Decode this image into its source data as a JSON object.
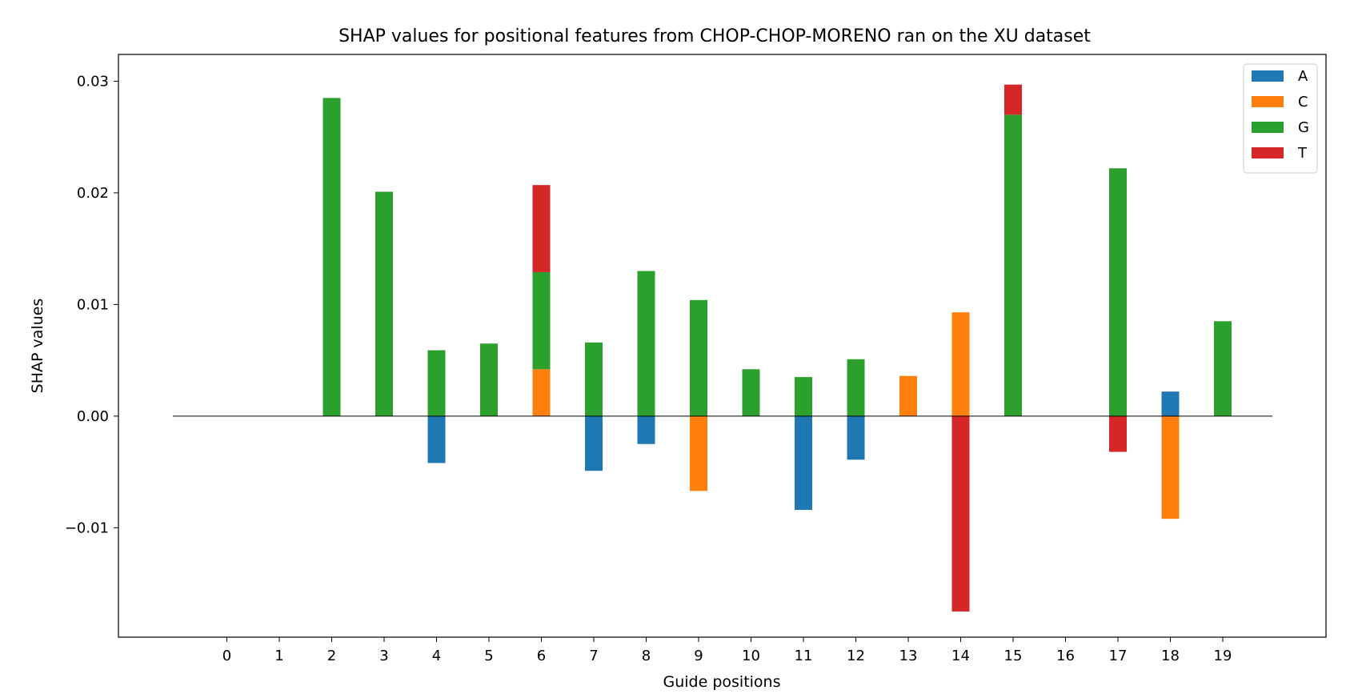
{
  "chart_data": {
    "type": "bar",
    "stacked": true,
    "title": "SHAP values for positional features from CHOP-CHOP-MORENO ran on the XU dataset",
    "xlabel": "Guide positions",
    "ylabel": "SHAP values",
    "categories": [
      "0",
      "1",
      "2",
      "3",
      "4",
      "5",
      "6",
      "7",
      "8",
      "9",
      "10",
      "11",
      "12",
      "13",
      "14",
      "15",
      "16",
      "17",
      "18",
      "19"
    ],
    "ylim": [
      -0.0198,
      0.0324
    ],
    "yticks": [
      -0.01,
      0.0,
      0.01,
      0.02,
      0.03
    ],
    "ytick_labels": [
      "−0.01",
      "0.00",
      "0.01",
      "0.02",
      "0.03"
    ],
    "grid": false,
    "legend_position": "top-right",
    "series": [
      {
        "name": "A",
        "color": "#1f77b4",
        "values": [
          0,
          0,
          0,
          0,
          -0.0042,
          0,
          0,
          -0.0049,
          -0.0025,
          0,
          0,
          -0.0084,
          -0.0039,
          0,
          0,
          0,
          0,
          0,
          0.0022,
          0
        ]
      },
      {
        "name": "C",
        "color": "#ff7f0e",
        "values": [
          0,
          0,
          0,
          0,
          0,
          0,
          0.0042,
          0,
          0,
          -0.0067,
          0,
          0,
          0,
          0.0036,
          0.0093,
          0,
          0,
          0,
          -0.0092,
          0
        ]
      },
      {
        "name": "G",
        "color": "#2ca02c",
        "values": [
          0,
          0,
          0.0285,
          0.0201,
          0.0059,
          0.0065,
          0.0087,
          0.0066,
          0.013,
          0.0104,
          0.0042,
          0.0035,
          0.0051,
          0,
          0,
          0.027,
          0,
          0.0222,
          0,
          0.0085
        ]
      },
      {
        "name": "T",
        "color": "#d62728",
        "values": [
          0,
          0,
          0,
          0,
          0,
          0,
          0.0078,
          0,
          0,
          0,
          0,
          0,
          0,
          0,
          -0.0175,
          0.0027,
          0,
          -0.0032,
          0,
          0
        ]
      }
    ]
  }
}
